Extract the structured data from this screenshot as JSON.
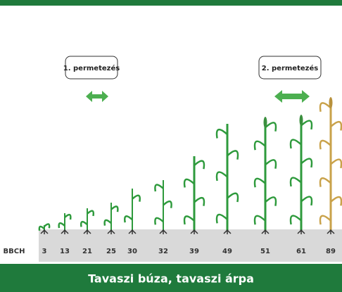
{
  "labels": {
    "spray1": "1. permetezés",
    "spray2": "2. permetezés"
  },
  "scale": {
    "label": "BBCH",
    "stages": [
      3,
      13,
      21,
      25,
      30,
      32,
      39,
      49,
      51,
      61,
      89
    ]
  },
  "footer": {
    "title": "Tavaszi búza, tavaszi árpa"
  }
}
